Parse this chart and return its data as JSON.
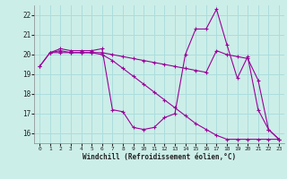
{
  "xlabel": "Windchill (Refroidissement éolien,°C)",
  "bg_color": "#cceee8",
  "line_color": "#990099",
  "grid_color": "#aadddd",
  "xlim_min": -0.5,
  "xlim_max": 23.5,
  "ylim_min": 15.5,
  "ylim_max": 22.5,
  "yticks": [
    16,
    17,
    18,
    19,
    20,
    21,
    22
  ],
  "xticks": [
    0,
    1,
    2,
    3,
    4,
    5,
    6,
    7,
    8,
    9,
    10,
    11,
    12,
    13,
    14,
    15,
    16,
    17,
    18,
    19,
    20,
    21,
    22,
    23
  ],
  "line1_x": [
    0,
    1,
    2,
    3,
    4,
    5,
    6,
    7,
    8,
    9,
    10,
    11,
    12,
    13,
    14,
    15,
    16,
    17,
    18,
    19,
    20,
    21,
    22,
    23
  ],
  "line1_y": [
    19.4,
    20.1,
    20.3,
    20.2,
    20.2,
    20.2,
    20.3,
    17.2,
    17.1,
    16.3,
    16.2,
    16.3,
    16.8,
    17.0,
    20.0,
    21.3,
    21.3,
    22.3,
    20.5,
    18.8,
    19.9,
    17.2,
    16.2,
    15.7
  ],
  "line2_x": [
    0,
    1,
    2,
    3,
    4,
    5,
    6,
    7,
    8,
    9,
    10,
    11,
    12,
    13,
    14,
    15,
    16,
    17,
    18,
    19,
    20,
    21,
    22,
    23
  ],
  "line2_y": [
    19.4,
    20.1,
    20.2,
    20.1,
    20.1,
    20.1,
    20.1,
    20.0,
    19.9,
    19.8,
    19.7,
    19.6,
    19.5,
    19.4,
    19.3,
    19.2,
    19.1,
    20.2,
    20.0,
    19.9,
    19.8,
    18.7,
    16.2,
    15.7
  ],
  "line3_x": [
    1,
    2,
    3,
    4,
    5,
    6,
    7,
    8,
    9,
    10,
    11,
    12,
    13,
    14,
    15,
    16,
    17,
    18,
    19,
    20,
    21,
    22,
    23
  ],
  "line3_y": [
    20.1,
    20.1,
    20.1,
    20.1,
    20.1,
    20.0,
    19.7,
    19.3,
    18.9,
    18.5,
    18.1,
    17.7,
    17.3,
    16.9,
    16.5,
    16.2,
    15.9,
    15.7,
    15.7,
    15.7,
    15.7,
    15.7,
    15.7
  ]
}
